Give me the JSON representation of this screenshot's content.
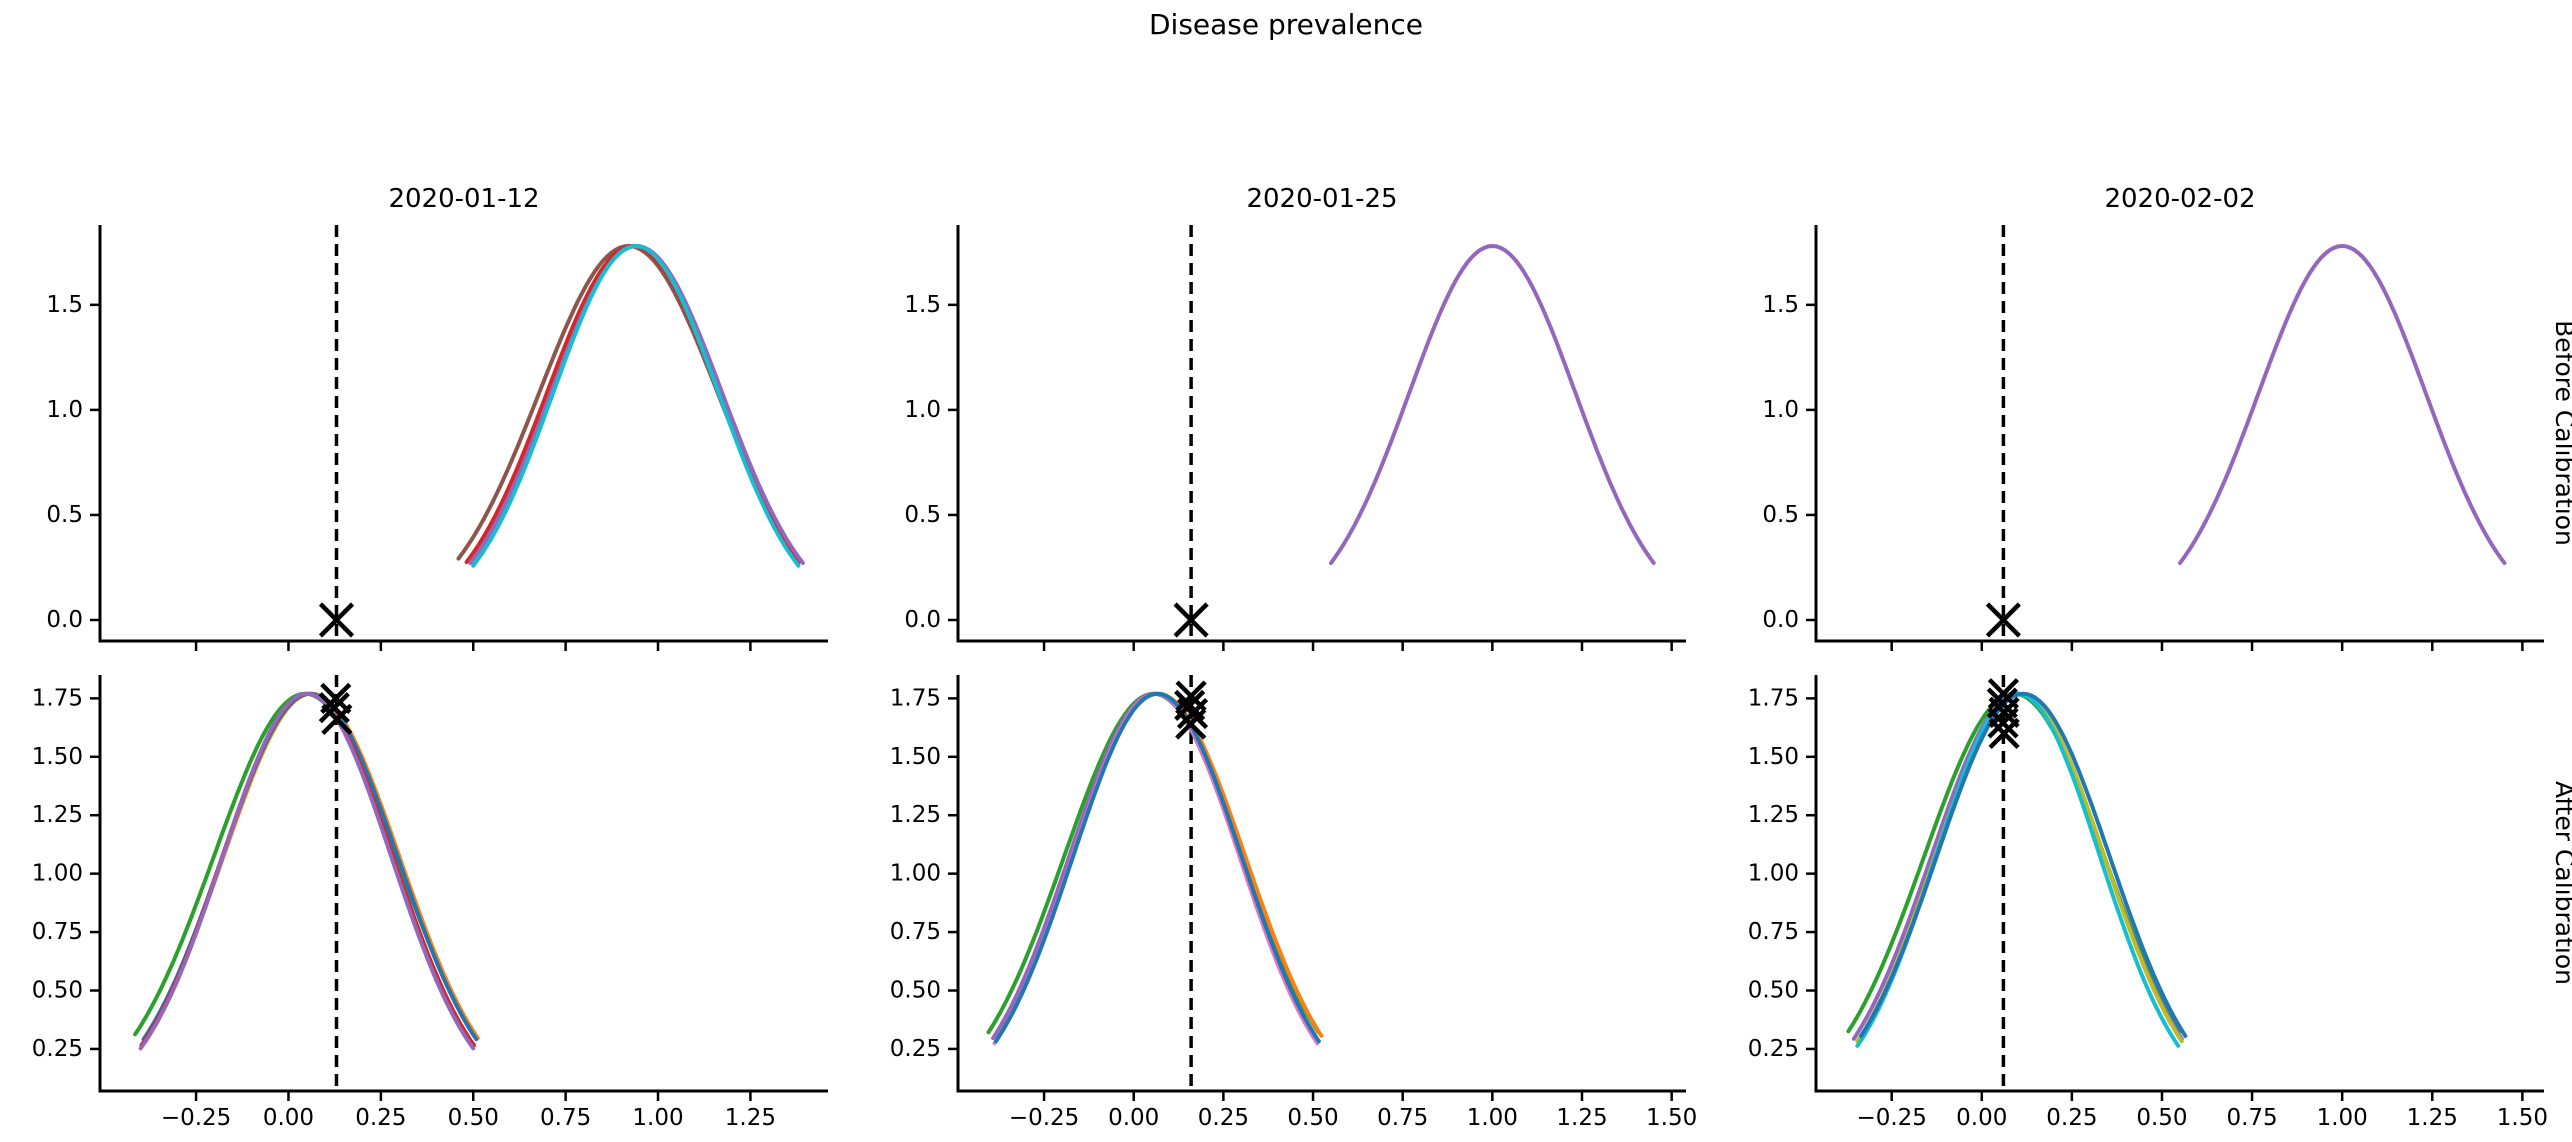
{
  "chart_data": {
    "type": "line",
    "title": "Disease prevalence",
    "row_labels": [
      "Before Calibration",
      "After Calibration"
    ],
    "col_titles": [
      "2020-01-12",
      "2020-01-25",
      "2020-02-02"
    ],
    "legend": "none",
    "grid": false,
    "marker_color": "#000000",
    "vline_style": "dashed-black",
    "subplots": [
      {
        "row": 0,
        "col": 0,
        "title": "2020-01-12",
        "xlim": [
          -0.51,
          1.46
        ],
        "ylim": [
          -0.1,
          1.88
        ],
        "xticks": [
          -0.25,
          0.0,
          0.25,
          0.5,
          0.75,
          1.0,
          1.25
        ],
        "xtick_labels": null,
        "yticks": [
          0.0,
          0.5,
          1.0,
          1.5
        ],
        "ytick_labels": [
          "0.0",
          "0.5",
          "1.0",
          "1.5"
        ],
        "vline_x": 0.13,
        "markers": [
          {
            "x": 0.13,
            "y": 0.0
          }
        ],
        "curves": [
          {
            "color": "#8c564b",
            "mu": 0.92,
            "sigma": 0.242,
            "peak": 1.78,
            "span": 0.46
          },
          {
            "color": "#d62728",
            "mu": 0.932,
            "sigma": 0.233,
            "peak": 1.78,
            "span": 0.45
          },
          {
            "color": "#9467bd",
            "mu": 0.942,
            "sigma": 0.232,
            "peak": 1.78,
            "span": 0.45
          },
          {
            "color": "#17becf",
            "mu": 0.94,
            "sigma": 0.224,
            "peak": 1.78,
            "span": 0.44
          }
        ]
      },
      {
        "row": 0,
        "col": 1,
        "title": "2020-01-25",
        "xlim": [
          -0.49,
          1.54
        ],
        "ylim": [
          -0.1,
          1.88
        ],
        "xticks": [
          -0.25,
          0.0,
          0.25,
          0.5,
          0.75,
          1.0,
          1.25,
          1.5
        ],
        "xtick_labels": null,
        "yticks": [
          0.0,
          0.5,
          1.0,
          1.5
        ],
        "ytick_labels": [
          "0.0",
          "0.5",
          "1.0",
          "1.5"
        ],
        "vline_x": 0.16,
        "markers": [
          {
            "x": 0.16,
            "y": 0.0
          }
        ],
        "curves": [
          {
            "color": "#9467bd",
            "mu": 1.0,
            "sigma": 0.232,
            "peak": 1.78,
            "span": 0.45
          }
        ]
      },
      {
        "row": 0,
        "col": 2,
        "title": "2020-02-02",
        "xlim": [
          -0.46,
          1.56
        ],
        "ylim": [
          -0.1,
          1.88
        ],
        "xticks": [
          -0.25,
          0.0,
          0.25,
          0.5,
          0.75,
          1.0,
          1.25,
          1.5
        ],
        "xtick_labels": null,
        "yticks": [
          0.0,
          0.5,
          1.0,
          1.5
        ],
        "ytick_labels": [
          "0.0",
          "0.5",
          "1.0",
          "1.5"
        ],
        "vline_x": 0.06,
        "markers": [
          {
            "x": 0.06,
            "y": 0.0
          }
        ],
        "curves": [
          {
            "color": "#9467bd",
            "mu": 1.0,
            "sigma": 0.232,
            "peak": 1.78,
            "span": 0.45
          }
        ]
      },
      {
        "row": 1,
        "col": 0,
        "title": null,
        "xlim": [
          -0.51,
          1.46
        ],
        "ylim": [
          0.07,
          1.85
        ],
        "xticks": [
          -0.25,
          0.0,
          0.25,
          0.5,
          0.75,
          1.0,
          1.25
        ],
        "xtick_labels": [
          "−0.25",
          "0.00",
          "0.25",
          "0.50",
          "0.75",
          "1.00",
          "1.25"
        ],
        "yticks": [
          0.25,
          0.5,
          0.75,
          1.0,
          1.25,
          1.5,
          1.75
        ],
        "ytick_labels": [
          "0.25",
          "0.50",
          "0.75",
          "1.00",
          "1.25",
          "1.50",
          "1.75"
        ],
        "vline_x": 0.13,
        "markers": [
          {
            "x": 0.128,
            "y": 1.75
          },
          {
            "x": 0.124,
            "y": 1.71
          },
          {
            "x": 0.131,
            "y": 1.66
          }
        ],
        "curves": [
          {
            "color": "#2ca02c",
            "mu": 0.045,
            "sigma": 0.247,
            "peak": 1.77,
            "span": 0.46
          },
          {
            "color": "#ff7f0e",
            "mu": 0.062,
            "sigma": 0.238,
            "peak": 1.77,
            "span": 0.45
          },
          {
            "color": "#1f77b4",
            "mu": 0.058,
            "sigma": 0.237,
            "peak": 1.77,
            "span": 0.45
          },
          {
            "color": "#d62728",
            "mu": 0.052,
            "sigma": 0.231,
            "peak": 1.77,
            "span": 0.45
          },
          {
            "color": "#9467bd",
            "mu": 0.05,
            "sigma": 0.228,
            "peak": 1.77,
            "span": 0.45
          }
        ]
      },
      {
        "row": 1,
        "col": 1,
        "title": null,
        "xlim": [
          -0.49,
          1.54
        ],
        "ylim": [
          0.07,
          1.85
        ],
        "xticks": [
          -0.25,
          0.0,
          0.25,
          0.5,
          0.75,
          1.0,
          1.25,
          1.5
        ],
        "xtick_labels": [
          "−0.25",
          "0.00",
          "0.25",
          "0.50",
          "0.75",
          "1.00",
          "1.25",
          "1.50"
        ],
        "yticks": [
          0.25,
          0.5,
          0.75,
          1.0,
          1.25,
          1.5,
          1.75
        ],
        "ytick_labels": [
          "0.25",
          "0.50",
          "0.75",
          "1.00",
          "1.25",
          "1.50",
          "1.75"
        ],
        "vline_x": 0.16,
        "markers": [
          {
            "x": 0.16,
            "y": 1.76
          },
          {
            "x": 0.156,
            "y": 1.72
          },
          {
            "x": 0.164,
            "y": 1.685
          },
          {
            "x": 0.159,
            "y": 1.64
          }
        ],
        "curves": [
          {
            "color": "#2ca02c",
            "mu": 0.055,
            "sigma": 0.249,
            "peak": 1.77,
            "span": 0.46
          },
          {
            "color": "#ff7f0e",
            "mu": 0.068,
            "sigma": 0.243,
            "peak": 1.77,
            "span": 0.455
          },
          {
            "color": "#9467bd",
            "mu": 0.058,
            "sigma": 0.238,
            "peak": 1.77,
            "span": 0.45
          },
          {
            "color": "#e377c2",
            "mu": 0.062,
            "sigma": 0.233,
            "peak": 1.77,
            "span": 0.45
          },
          {
            "color": "#1f77b4",
            "mu": 0.066,
            "sigma": 0.235,
            "peak": 1.77,
            "span": 0.45
          }
        ]
      },
      {
        "row": 1,
        "col": 2,
        "title": null,
        "xlim": [
          -0.46,
          1.56
        ],
        "ylim": [
          0.07,
          1.85
        ],
        "xticks": [
          -0.25,
          0.0,
          0.25,
          0.5,
          0.75,
          1.0,
          1.25,
          1.5
        ],
        "xtick_labels": [
          "−0.25",
          "0.00",
          "0.25",
          "0.50",
          "0.75",
          "1.00",
          "1.25",
          "1.50"
        ],
        "yticks": [
          0.25,
          0.5,
          0.75,
          1.0,
          1.25,
          1.5,
          1.75
        ],
        "ytick_labels": [
          "0.25",
          "0.50",
          "0.75",
          "1.00",
          "1.25",
          "1.50",
          "1.75"
        ],
        "vline_x": 0.06,
        "markers": [
          {
            "x": 0.06,
            "y": 1.77
          },
          {
            "x": 0.057,
            "y": 1.73
          },
          {
            "x": 0.062,
            "y": 1.69
          },
          {
            "x": 0.059,
            "y": 1.645
          },
          {
            "x": 0.062,
            "y": 1.6
          }
        ],
        "curves": [
          {
            "color": "#2ca02c",
            "mu": 0.09,
            "sigma": 0.25,
            "peak": 1.77,
            "span": 0.46
          },
          {
            "color": "#9467bd",
            "mu": 0.1,
            "sigma": 0.24,
            "peak": 1.77,
            "span": 0.455
          },
          {
            "color": "#bcbd22",
            "mu": 0.105,
            "sigma": 0.235,
            "peak": 1.77,
            "span": 0.45
          },
          {
            "color": "#17becf",
            "mu": 0.1,
            "sigma": 0.228,
            "peak": 1.77,
            "span": 0.445
          },
          {
            "color": "#1f77b4",
            "mu": 0.115,
            "sigma": 0.24,
            "peak": 1.77,
            "span": 0.45
          }
        ]
      }
    ]
  }
}
